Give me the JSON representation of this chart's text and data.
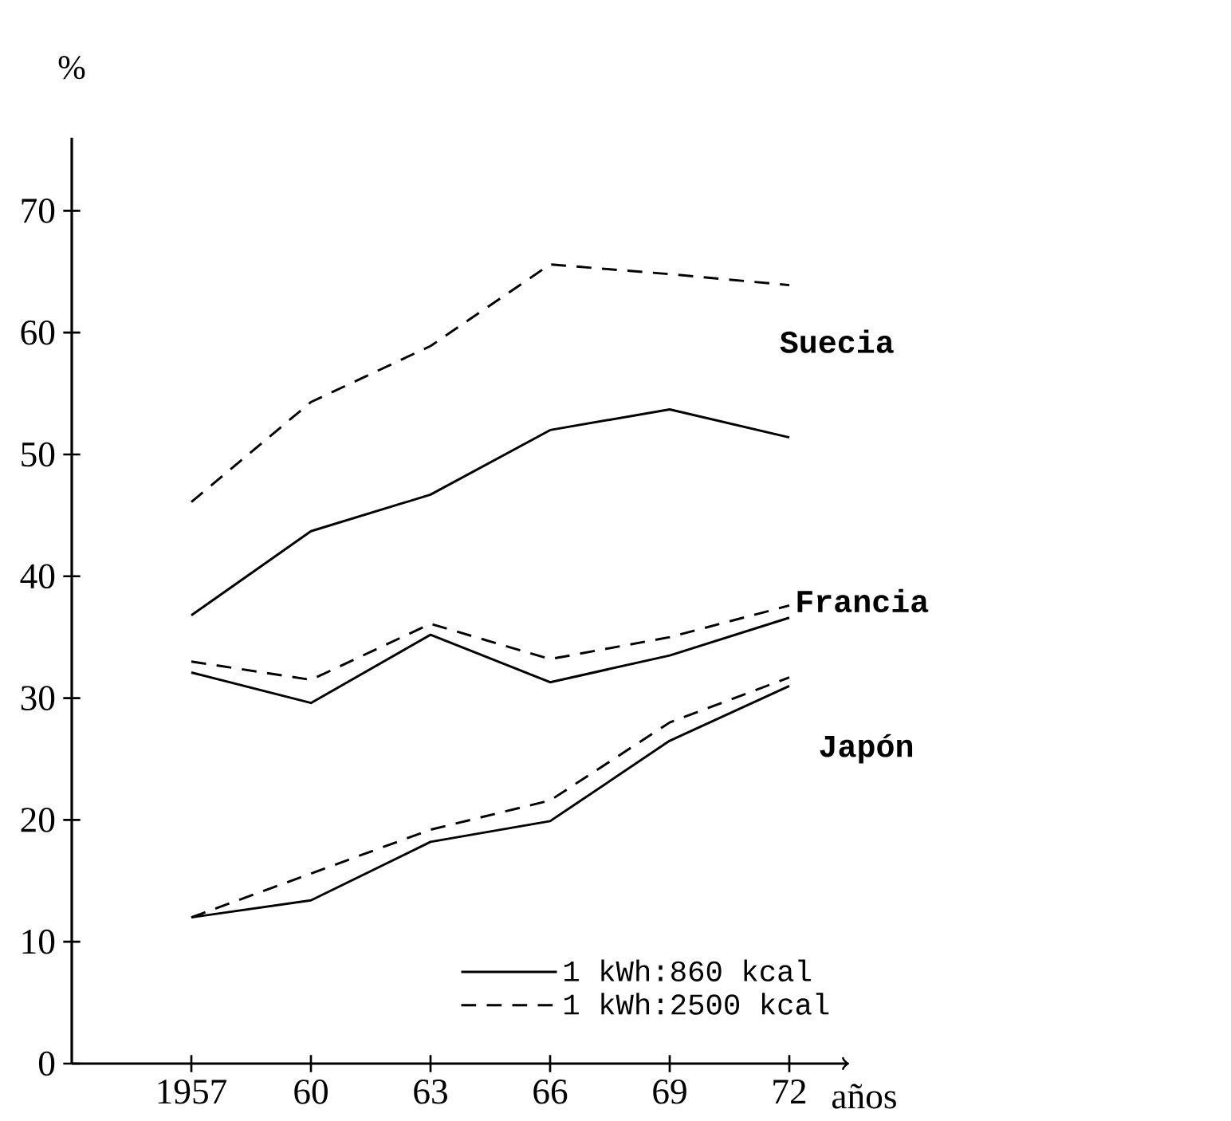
{
  "chart_data": {
    "type": "line",
    "ylabel": "%",
    "xlabel": "años",
    "x": [
      1957,
      1960,
      1963,
      1966,
      1969,
      1972
    ],
    "series": [
      {
        "name": "1 kWh:860 kcal",
        "color": "#000000",
        "line_style": "solid",
        "values": [
          36.8,
          43.7,
          46.7,
          52.0,
          53.7,
          51.4
        ]
      },
      {
        "name": "1 kWh:2500 kcal",
        "color": "#000000",
        "line_style": "dashed",
        "values": [
          46.1,
          54.3,
          58.9,
          65.6,
          64.8,
          63.9
        ]
      },
      {
        "color": "#000000",
        "line_style": "solid",
        "values": [
          32.1,
          29.6,
          35.2,
          31.3,
          33.5,
          36.6
        ]
      },
      {
        "color": "#000000",
        "line_style": "dashed",
        "values": [
          33.0,
          31.5,
          36.1,
          33.2,
          35.0,
          37.6
        ]
      },
      {
        "color": "#000000",
        "line_style": "solid",
        "values": [
          12.0,
          13.4,
          18.2,
          19.9,
          26.5,
          31.0
        ]
      },
      {
        "color": "#000000",
        "line_style": "dashed",
        "values": [
          12.0,
          15.6,
          19.2,
          21.6,
          28.0,
          31.7
        ]
      }
    ],
    "xlim": [
      1954,
      1973.5
    ],
    "ylim": [
      0,
      76
    ],
    "xticks": [
      1957,
      {
        "value": 1960,
        "label": "60"
      },
      {
        "value": 1963,
        "label": "63"
      },
      {
        "value": 1966,
        "label": "66"
      },
      {
        "value": 1969,
        "label": "69"
      },
      {
        "value": 1972,
        "label": "72"
      }
    ],
    "yticks": [
      0,
      10,
      20,
      30,
      40,
      50,
      60,
      70
    ],
    "annotations": [
      "Suecia",
      "Francia",
      "Japón"
    ],
    "legend": "bottom right",
    "grid": false
  }
}
